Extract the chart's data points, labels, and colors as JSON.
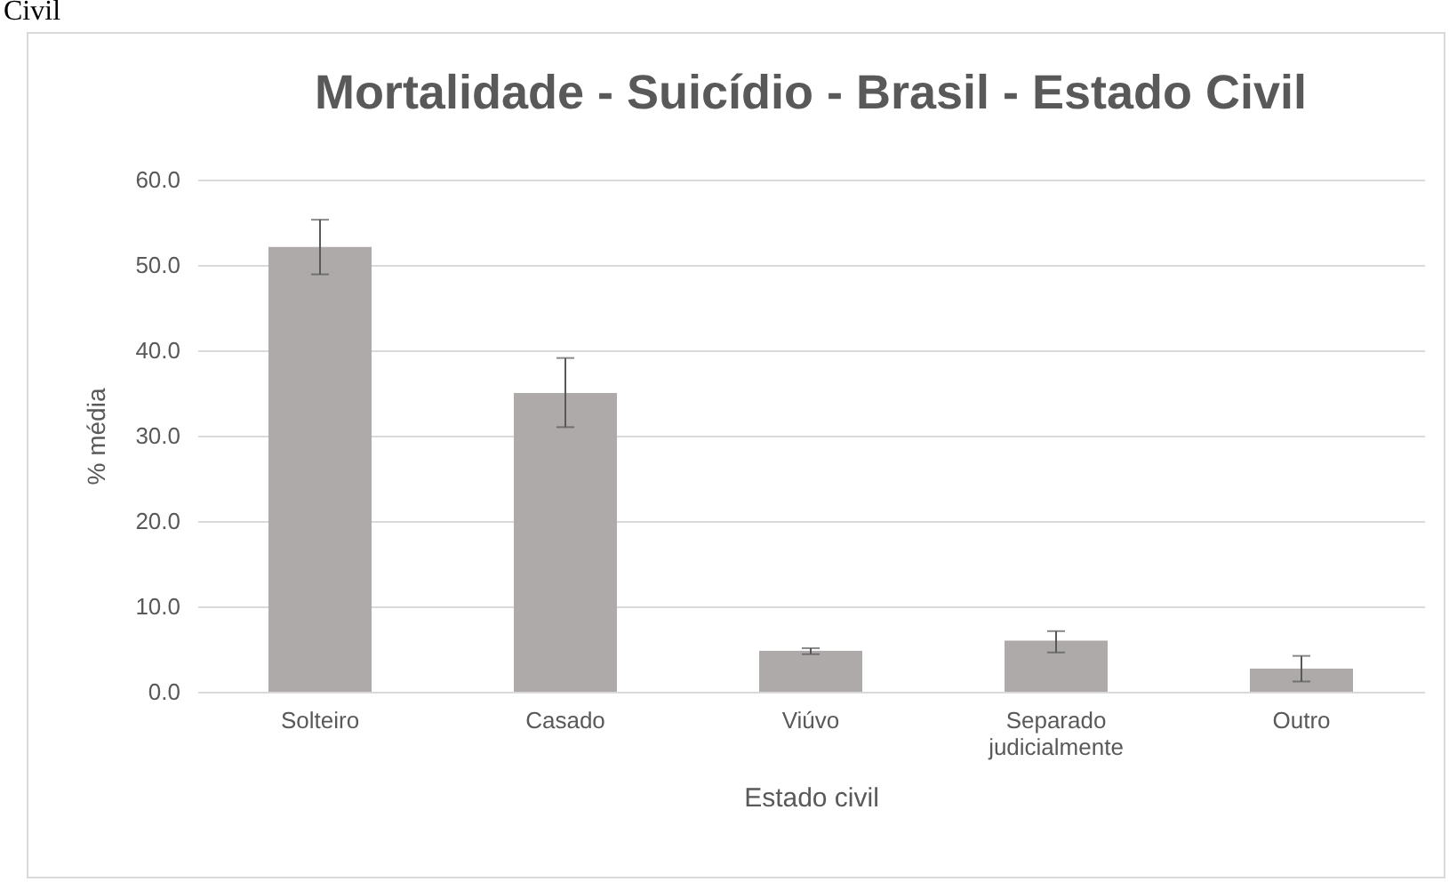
{
  "chart_data": {
    "type": "bar",
    "title": "Mortalidade - Suicídio - Brasil - Estado Civil",
    "xlabel": "Estado civil",
    "ylabel": "% média",
    "annotations": [
      "Civil"
    ],
    "categories": [
      "Solteiro",
      "Casado",
      "Viúvo",
      "Separado judicialmente",
      "Outro"
    ],
    "values": [
      52.1,
      35.0,
      4.8,
      6.0,
      2.7
    ],
    "errors": [
      [
        48.9,
        55.3
      ],
      [
        31.0,
        39.1
      ],
      [
        4.4,
        5.1
      ],
      [
        4.6,
        7.1
      ],
      [
        1.2,
        4.2
      ]
    ],
    "color": "#aeaaaa",
    "ylim": [
      0,
      60
    ],
    "yticks": [
      {
        "value": 0,
        "label": "0.0"
      },
      {
        "value": 10,
        "label": "10.0"
      },
      {
        "value": 20,
        "label": "20.0"
      },
      {
        "value": 30,
        "label": "30.0"
      },
      {
        "value": 40,
        "label": "40.0"
      },
      {
        "value": 50,
        "label": "50.0"
      },
      {
        "value": 60,
        "label": "60.0"
      }
    ],
    "grid": "y"
  }
}
